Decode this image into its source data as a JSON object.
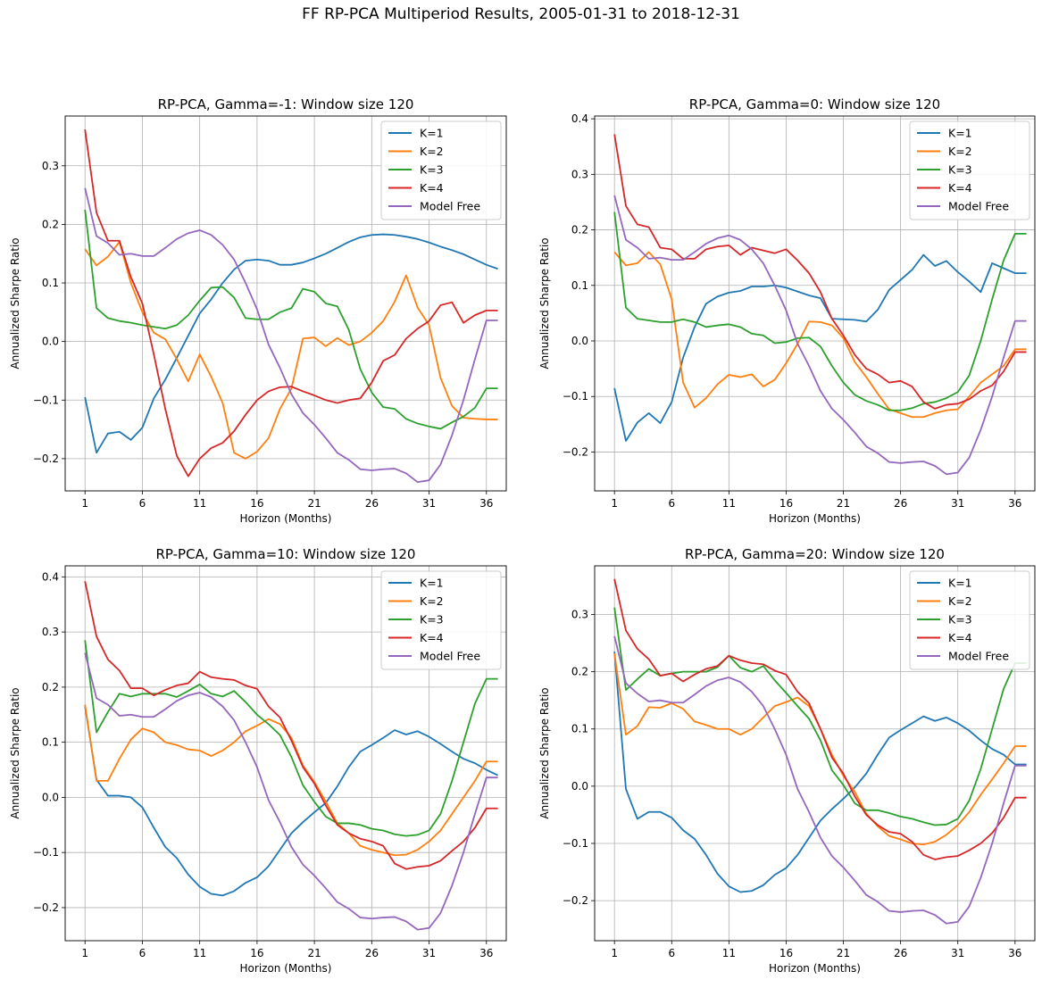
{
  "figure": {
    "suptitle": "FF RP-PCA Multiperiod Results, 2005-01-31 to 2018-12-31"
  },
  "colors": [
    "#1f77b4",
    "#ff7f0e",
    "#2ca02c",
    "#d62728",
    "#9467bd"
  ],
  "chart_data": [
    {
      "type": "line",
      "title": "RP-PCA, Gamma=-1: Window size 120",
      "xlabel": "Horizon (Months)",
      "ylabel": "Annualized Sharpe Ratio",
      "xlim": [
        1,
        36
      ],
      "ylim": [
        -0.255,
        0.385
      ],
      "xticks": [
        1,
        6,
        11,
        16,
        21,
        26,
        31,
        36
      ],
      "yticks": [
        -0.2,
        -0.1,
        0.0,
        0.1,
        0.2,
        0.3
      ],
      "ytick_labels": [
        "−0.2",
        "−0.1",
        "0.0",
        "0.1",
        "0.2",
        "0.3"
      ],
      "grid": true,
      "legend": "top-right",
      "series": [
        {
          "name": "K=1",
          "values": [
            -0.095,
            -0.19,
            -0.157,
            -0.154,
            -0.168,
            -0.147,
            -0.097,
            -0.065,
            -0.028,
            0.01,
            0.048,
            0.072,
            0.1,
            0.123,
            0.138,
            0.14,
            0.138,
            0.131,
            0.131,
            0.135,
            0.142,
            0.15,
            0.16,
            0.17,
            0.178,
            0.182,
            0.183,
            0.182,
            0.179,
            0.175,
            0.169,
            0.162,
            0.156,
            0.149,
            0.14,
            0.131,
            0.124
          ]
        },
        {
          "name": "K=2",
          "values": [
            0.158,
            0.13,
            0.145,
            0.17,
            0.1,
            0.05,
            0.015,
            0.004,
            -0.03,
            -0.068,
            -0.022,
            -0.06,
            -0.105,
            -0.19,
            -0.2,
            -0.188,
            -0.165,
            -0.115,
            -0.08,
            0.005,
            0.007,
            -0.008,
            0.006,
            -0.006,
            0.0,
            0.015,
            0.035,
            0.068,
            0.113,
            0.058,
            0.028,
            -0.062,
            -0.11,
            -0.13,
            -0.132,
            -0.133,
            -0.133
          ]
        },
        {
          "name": "K=3",
          "values": [
            0.225,
            0.057,
            0.04,
            0.035,
            0.032,
            0.028,
            0.025,
            0.022,
            0.028,
            0.045,
            0.07,
            0.092,
            0.093,
            0.075,
            0.04,
            0.038,
            0.038,
            0.05,
            0.057,
            0.09,
            0.085,
            0.065,
            0.06,
            0.02,
            -0.047,
            -0.087,
            -0.112,
            -0.115,
            -0.132,
            -0.14,
            -0.145,
            -0.149,
            -0.138,
            -0.128,
            -0.113,
            -0.08,
            -0.08
          ]
        },
        {
          "name": "K=4",
          "values": [
            0.362,
            0.22,
            0.172,
            0.172,
            0.11,
            0.065,
            -0.022,
            -0.115,
            -0.195,
            -0.23,
            -0.2,
            -0.182,
            -0.173,
            -0.153,
            -0.125,
            -0.1,
            -0.085,
            -0.078,
            -0.077,
            -0.085,
            -0.092,
            -0.1,
            -0.105,
            -0.1,
            -0.097,
            -0.07,
            -0.033,
            -0.023,
            0.005,
            0.022,
            0.035,
            0.062,
            0.067,
            0.032,
            0.045,
            0.053,
            0.053
          ]
        },
        {
          "name": "Model Free",
          "values": [
            0.262,
            0.18,
            0.168,
            0.148,
            0.15,
            0.146,
            0.146,
            0.16,
            0.175,
            0.185,
            0.19,
            0.182,
            0.165,
            0.14,
            0.1,
            0.055,
            -0.005,
            -0.045,
            -0.09,
            -0.122,
            -0.142,
            -0.165,
            -0.19,
            -0.202,
            -0.218,
            -0.22,
            -0.218,
            -0.217,
            -0.225,
            -0.24,
            -0.237,
            -0.21,
            -0.16,
            -0.1,
            -0.03,
            0.036,
            0.036
          ]
        }
      ]
    },
    {
      "type": "line",
      "title": "RP-PCA, Gamma=0: Window size 120",
      "xlabel": "Horizon (Months)",
      "ylabel": "Annualized Sharpe Ratio",
      "xlim": [
        1,
        36
      ],
      "ylim": [
        -0.27,
        0.405
      ],
      "xticks": [
        1,
        6,
        11,
        16,
        21,
        26,
        31,
        36
      ],
      "yticks": [
        -0.2,
        -0.1,
        0.0,
        0.1,
        0.2,
        0.3,
        0.4
      ],
      "ytick_labels": [
        "−0.2",
        "−0.1",
        "0.0",
        "0.1",
        "0.2",
        "0.3",
        "0.4"
      ],
      "grid": true,
      "legend": "top-right",
      "series": [
        {
          "name": "K=1",
          "values": [
            -0.085,
            -0.18,
            -0.147,
            -0.13,
            -0.148,
            -0.11,
            -0.03,
            0.025,
            0.067,
            0.08,
            0.087,
            0.09,
            0.098,
            0.098,
            0.1,
            0.096,
            0.089,
            0.082,
            0.077,
            0.04,
            0.039,
            0.038,
            0.035,
            0.056,
            0.092,
            0.11,
            0.128,
            0.155,
            0.135,
            0.144,
            0.124,
            0.107,
            0.088,
            0.14,
            0.131,
            0.122,
            0.122
          ]
        },
        {
          "name": "K=2",
          "values": [
            0.16,
            0.136,
            0.14,
            0.16,
            0.138,
            0.075,
            -0.075,
            -0.12,
            -0.103,
            -0.078,
            -0.061,
            -0.065,
            -0.06,
            -0.082,
            -0.07,
            -0.04,
            -0.005,
            0.035,
            0.034,
            0.028,
            0.005,
            -0.038,
            -0.065,
            -0.095,
            -0.123,
            -0.13,
            -0.137,
            -0.137,
            -0.13,
            -0.125,
            -0.123,
            -0.1,
            -0.075,
            -0.06,
            -0.045,
            -0.015,
            -0.015
          ]
        },
        {
          "name": "K=3",
          "values": [
            0.232,
            0.06,
            0.04,
            0.037,
            0.034,
            0.034,
            0.039,
            0.034,
            0.025,
            0.028,
            0.03,
            0.025,
            0.013,
            0.01,
            -0.004,
            -0.002,
            0.005,
            0.006,
            -0.01,
            -0.045,
            -0.075,
            -0.097,
            -0.108,
            -0.115,
            -0.125,
            -0.125,
            -0.121,
            -0.113,
            -0.11,
            -0.103,
            -0.092,
            -0.062,
            0.0,
            0.075,
            0.145,
            0.193,
            0.193
          ]
        },
        {
          "name": "K=4",
          "values": [
            0.372,
            0.243,
            0.21,
            0.205,
            0.168,
            0.165,
            0.148,
            0.148,
            0.165,
            0.17,
            0.172,
            0.155,
            0.168,
            0.163,
            0.158,
            0.165,
            0.145,
            0.122,
            0.088,
            0.04,
            0.01,
            -0.025,
            -0.05,
            -0.06,
            -0.075,
            -0.072,
            -0.082,
            -0.11,
            -0.122,
            -0.115,
            -0.113,
            -0.105,
            -0.09,
            -0.08,
            -0.055,
            -0.02,
            -0.02
          ]
        },
        {
          "name": "Model Free",
          "values": [
            0.262,
            0.182,
            0.168,
            0.148,
            0.15,
            0.146,
            0.146,
            0.16,
            0.175,
            0.185,
            0.19,
            0.182,
            0.165,
            0.14,
            0.1,
            0.055,
            -0.005,
            -0.045,
            -0.09,
            -0.122,
            -0.142,
            -0.165,
            -0.19,
            -0.202,
            -0.218,
            -0.22,
            -0.218,
            -0.217,
            -0.225,
            -0.24,
            -0.237,
            -0.21,
            -0.16,
            -0.1,
            -0.03,
            0.036,
            0.036
          ]
        }
      ]
    },
    {
      "type": "line",
      "title": "RP-PCA, Gamma=10: Window size 120",
      "xlabel": "Horizon (Months)",
      "ylabel": "Annualized Sharpe Ratio",
      "xlim": [
        1,
        36
      ],
      "ylim": [
        -0.26,
        0.42
      ],
      "xticks": [
        1,
        6,
        11,
        16,
        21,
        26,
        31,
        36
      ],
      "yticks": [
        -0.2,
        -0.1,
        0.0,
        0.1,
        0.2,
        0.3,
        0.4
      ],
      "ytick_labels": [
        "−0.2",
        "−0.1",
        "0.0",
        "0.1",
        "0.2",
        "0.3",
        "0.4"
      ],
      "grid": true,
      "legend": "top-right",
      "series": [
        {
          "name": "K=1",
          "values": [
            0.165,
            0.032,
            0.003,
            0.003,
            0.0,
            -0.018,
            -0.055,
            -0.09,
            -0.11,
            -0.14,
            -0.162,
            -0.175,
            -0.178,
            -0.17,
            -0.155,
            -0.145,
            -0.125,
            -0.095,
            -0.065,
            -0.045,
            -0.027,
            -0.01,
            0.02,
            0.055,
            0.083,
            0.095,
            0.108,
            0.122,
            0.114,
            0.12,
            0.11,
            0.097,
            0.083,
            0.07,
            0.062,
            0.05,
            0.04
          ]
        },
        {
          "name": "K=2",
          "values": [
            0.168,
            0.03,
            0.03,
            0.07,
            0.105,
            0.125,
            0.118,
            0.1,
            0.095,
            0.087,
            0.085,
            0.075,
            0.085,
            0.1,
            0.12,
            0.13,
            0.142,
            0.133,
            0.108,
            0.058,
            0.028,
            -0.008,
            -0.047,
            -0.065,
            -0.088,
            -0.095,
            -0.1,
            -0.105,
            -0.104,
            -0.095,
            -0.08,
            -0.06,
            -0.03,
            0.0,
            0.03,
            0.065,
            0.065
          ]
        },
        {
          "name": "K=3",
          "values": [
            0.285,
            0.118,
            0.155,
            0.188,
            0.183,
            0.188,
            0.188,
            0.188,
            0.182,
            0.193,
            0.205,
            0.188,
            0.183,
            0.193,
            0.173,
            0.15,
            0.133,
            0.113,
            0.073,
            0.022,
            -0.008,
            -0.035,
            -0.047,
            -0.047,
            -0.05,
            -0.057,
            -0.06,
            -0.067,
            -0.07,
            -0.068,
            -0.06,
            -0.03,
            0.03,
            0.1,
            0.17,
            0.215,
            0.215
          ]
        },
        {
          "name": "K=4",
          "values": [
            0.392,
            0.292,
            0.25,
            0.23,
            0.198,
            0.198,
            0.185,
            0.195,
            0.203,
            0.207,
            0.228,
            0.218,
            0.215,
            0.213,
            0.203,
            0.197,
            0.165,
            0.145,
            0.103,
            0.055,
            0.025,
            -0.015,
            -0.05,
            -0.065,
            -0.075,
            -0.08,
            -0.088,
            -0.12,
            -0.13,
            -0.126,
            -0.124,
            -0.115,
            -0.097,
            -0.08,
            -0.055,
            -0.02,
            -0.02
          ]
        },
        {
          "name": "Model Free",
          "values": [
            0.262,
            0.18,
            0.168,
            0.148,
            0.15,
            0.146,
            0.146,
            0.16,
            0.175,
            0.185,
            0.19,
            0.182,
            0.165,
            0.14,
            0.1,
            0.055,
            -0.005,
            -0.045,
            -0.09,
            -0.122,
            -0.142,
            -0.165,
            -0.19,
            -0.202,
            -0.218,
            -0.22,
            -0.218,
            -0.217,
            -0.225,
            -0.24,
            -0.237,
            -0.21,
            -0.16,
            -0.1,
            -0.03,
            0.036,
            0.036
          ]
        }
      ]
    },
    {
      "type": "line",
      "title": "RP-PCA, Gamma=20: Window size 120",
      "xlabel": "Horizon (Months)",
      "ylabel": "Annualized Sharpe Ratio",
      "xlim": [
        1,
        36
      ],
      "ylim": [
        -0.27,
        0.385
      ],
      "xticks": [
        1,
        6,
        11,
        16,
        21,
        26,
        31,
        36
      ],
      "yticks": [
        -0.2,
        -0.1,
        0.0,
        0.1,
        0.2,
        0.3
      ],
      "ytick_labels": [
        "−0.2",
        "−0.1",
        "0.0",
        "0.1",
        "0.2",
        "0.3"
      ],
      "grid": true,
      "legend": "top-right",
      "series": [
        {
          "name": "K=1",
          "values": [
            0.235,
            -0.005,
            -0.057,
            -0.045,
            -0.045,
            -0.055,
            -0.077,
            -0.092,
            -0.12,
            -0.153,
            -0.175,
            -0.185,
            -0.183,
            -0.173,
            -0.155,
            -0.143,
            -0.12,
            -0.09,
            -0.06,
            -0.04,
            -0.022,
            -0.002,
            0.022,
            0.055,
            0.085,
            0.098,
            0.11,
            0.122,
            0.114,
            0.12,
            0.11,
            0.097,
            0.08,
            0.065,
            0.055,
            0.038,
            0.038
          ]
        },
        {
          "name": "K=2",
          "values": [
            0.232,
            0.09,
            0.105,
            0.138,
            0.137,
            0.145,
            0.135,
            0.113,
            0.107,
            0.1,
            0.1,
            0.09,
            0.1,
            0.12,
            0.14,
            0.147,
            0.155,
            0.14,
            0.1,
            0.055,
            0.018,
            -0.01,
            -0.048,
            -0.07,
            -0.087,
            -0.093,
            -0.1,
            -0.102,
            -0.097,
            -0.085,
            -0.068,
            -0.045,
            -0.015,
            0.012,
            0.04,
            0.07,
            0.07
          ]
        },
        {
          "name": "K=3",
          "values": [
            0.312,
            0.168,
            0.187,
            0.205,
            0.193,
            0.197,
            0.2,
            0.2,
            0.2,
            0.208,
            0.228,
            0.207,
            0.2,
            0.21,
            0.185,
            0.163,
            0.14,
            0.118,
            0.08,
            0.028,
            0.002,
            -0.03,
            -0.042,
            -0.042,
            -0.047,
            -0.053,
            -0.057,
            -0.063,
            -0.068,
            -0.067,
            -0.057,
            -0.025,
            0.03,
            0.1,
            0.17,
            0.215,
            0.215
          ]
        },
        {
          "name": "K=4",
          "values": [
            0.362,
            0.272,
            0.24,
            0.222,
            0.193,
            0.197,
            0.183,
            0.195,
            0.205,
            0.21,
            0.228,
            0.22,
            0.215,
            0.213,
            0.202,
            0.195,
            0.165,
            0.145,
            0.1,
            0.05,
            0.022,
            -0.018,
            -0.05,
            -0.068,
            -0.08,
            -0.083,
            -0.097,
            -0.12,
            -0.128,
            -0.124,
            -0.122,
            -0.112,
            -0.1,
            -0.082,
            -0.055,
            -0.02,
            -0.02
          ]
        },
        {
          "name": "Model Free",
          "values": [
            0.262,
            0.18,
            0.162,
            0.148,
            0.15,
            0.146,
            0.146,
            0.16,
            0.175,
            0.185,
            0.19,
            0.182,
            0.165,
            0.14,
            0.1,
            0.055,
            -0.005,
            -0.045,
            -0.09,
            -0.122,
            -0.142,
            -0.165,
            -0.19,
            -0.202,
            -0.218,
            -0.22,
            -0.218,
            -0.217,
            -0.225,
            -0.24,
            -0.237,
            -0.21,
            -0.16,
            -0.1,
            -0.03,
            0.036,
            0.036
          ]
        }
      ]
    }
  ]
}
